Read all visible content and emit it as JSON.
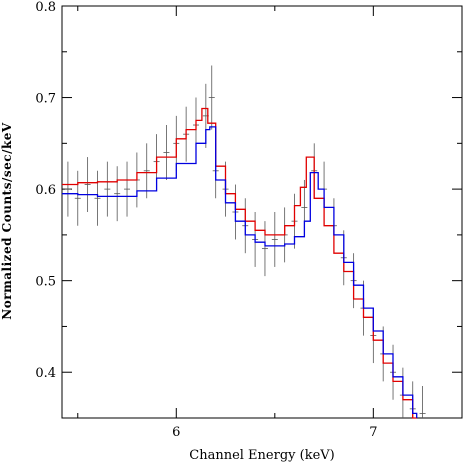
{
  "chart_data": {
    "type": "line",
    "xlabel": "Channel Energy (keV)",
    "ylabel": "Normalized Counts/sec/keV",
    "xlim": [
      5.42,
      7.45
    ],
    "ylim": [
      0.35,
      0.8
    ],
    "xticks_major": [
      6,
      7
    ],
    "xticks_minor": [
      5.5,
      6.5
    ],
    "yticks_major": [
      0.4,
      0.5,
      0.6,
      0.7,
      0.8
    ],
    "yticks_minor": [
      0.45,
      0.55,
      0.65,
      0.75
    ],
    "series": [
      {
        "color": "#e00000",
        "x": [
          5.42,
          5.5,
          5.6,
          5.7,
          5.8,
          5.9,
          6.0,
          6.05,
          6.1,
          6.13,
          6.16,
          6.2,
          6.25,
          6.3,
          6.35,
          6.4,
          6.45,
          6.5,
          6.55,
          6.6,
          6.63,
          6.66,
          6.7,
          6.75,
          6.8,
          6.85,
          6.9,
          6.95,
          7.0,
          7.05,
          7.1,
          7.15,
          7.2,
          7.22
        ],
        "y": [
          0.605,
          0.607,
          0.608,
          0.61,
          0.618,
          0.635,
          0.655,
          0.665,
          0.675,
          0.688,
          0.672,
          0.625,
          0.595,
          0.578,
          0.565,
          0.555,
          0.55,
          0.55,
          0.56,
          0.582,
          0.602,
          0.635,
          0.59,
          0.56,
          0.53,
          0.51,
          0.48,
          0.46,
          0.435,
          0.41,
          0.39,
          0.37,
          0.35,
          0.345
        ]
      },
      {
        "color": "#0000e0",
        "x": [
          5.42,
          5.5,
          5.6,
          5.7,
          5.8,
          5.9,
          6.0,
          6.1,
          6.15,
          6.17,
          6.2,
          6.25,
          6.3,
          6.35,
          6.4,
          6.45,
          6.5,
          6.55,
          6.6,
          6.65,
          6.68,
          6.72,
          6.75,
          6.8,
          6.85,
          6.9,
          6.95,
          7.0,
          7.05,
          7.1,
          7.15,
          7.2,
          7.22
        ],
        "y": [
          0.595,
          0.594,
          0.592,
          0.592,
          0.598,
          0.612,
          0.628,
          0.65,
          0.665,
          0.668,
          0.61,
          0.585,
          0.565,
          0.55,
          0.542,
          0.538,
          0.538,
          0.54,
          0.548,
          0.565,
          0.618,
          0.6,
          0.58,
          0.55,
          0.52,
          0.495,
          0.47,
          0.445,
          0.42,
          0.395,
          0.375,
          0.355,
          0.35
        ]
      }
    ],
    "data_points": {
      "color": "#555555",
      "x": [
        5.45,
        5.5,
        5.55,
        5.6,
        5.65,
        5.7,
        5.75,
        5.8,
        5.85,
        5.9,
        5.95,
        6.0,
        6.05,
        6.1,
        6.15,
        6.18,
        6.2,
        6.25,
        6.3,
        6.35,
        6.4,
        6.45,
        6.5,
        6.55,
        6.6,
        6.65,
        6.7,
        6.75,
        6.8,
        6.85,
        6.9,
        6.95,
        7.0,
        7.05,
        7.1,
        7.15,
        7.2,
        7.25
      ],
      "y": [
        0.6,
        0.59,
        0.605,
        0.59,
        0.6,
        0.595,
        0.6,
        0.61,
        0.62,
        0.63,
        0.64,
        0.65,
        0.66,
        0.67,
        0.68,
        0.7,
        0.62,
        0.6,
        0.575,
        0.56,
        0.545,
        0.535,
        0.545,
        0.55,
        0.565,
        0.58,
        0.62,
        0.6,
        0.56,
        0.525,
        0.5,
        0.47,
        0.44,
        0.42,
        0.4,
        0.375,
        0.36,
        0.355
      ],
      "err": [
        0.03,
        0.03,
        0.03,
        0.03,
        0.03,
        0.03,
        0.03,
        0.03,
        0.03,
        0.03,
        0.03,
        0.03,
        0.03,
        0.03,
        0.035,
        0.035,
        0.03,
        0.03,
        0.03,
        0.03,
        0.03,
        0.03,
        0.03,
        0.03,
        0.03,
        0.03,
        0.03,
        0.03,
        0.03,
        0.03,
        0.03,
        0.03,
        0.03,
        0.03,
        0.03,
        0.03,
        0.03,
        0.03
      ]
    }
  }
}
